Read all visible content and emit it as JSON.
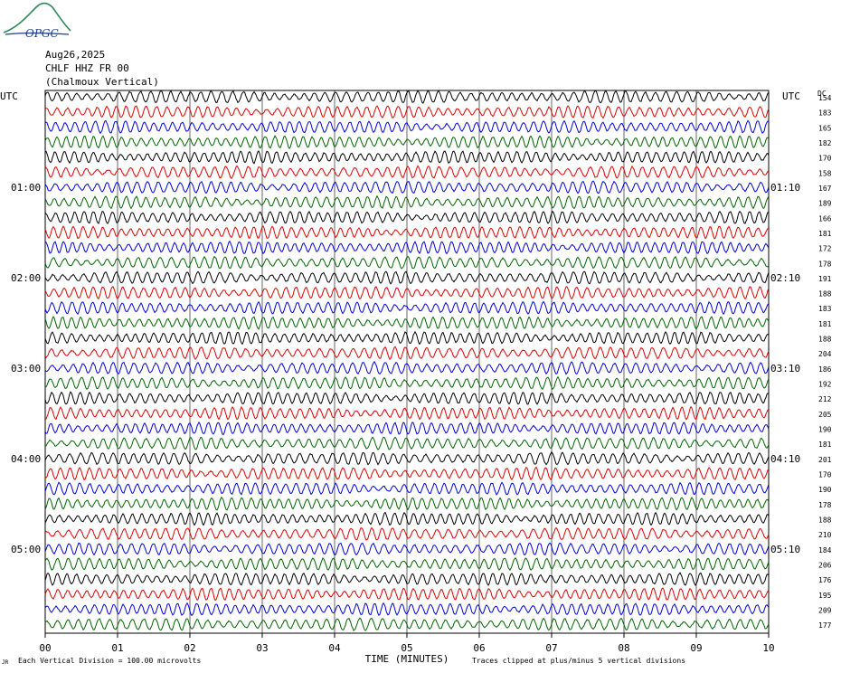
{
  "header": {
    "logo_text": "OPGC",
    "date": "Aug26,2025",
    "station": "CHLF HHZ FR 00",
    "location": "(Chalmoux Vertical)"
  },
  "chart_data": {
    "type": "line",
    "title": "",
    "xlabel": "TIME (MINUTES)",
    "ylabel": "",
    "xlim": [
      0,
      10
    ],
    "x_ticks": [
      "00",
      "01",
      "02",
      "03",
      "04",
      "05",
      "06",
      "07",
      "08",
      "09",
      "10"
    ],
    "left_axis_title": "UTC",
    "right_axis_title": "UTC",
    "right_column_title": "DC",
    "left_time_labels": [
      "01:00",
      "02:00",
      "03:00",
      "04:00",
      "05:00"
    ],
    "right_time_labels": [
      "01:10",
      "02:10",
      "03:10",
      "04:10",
      "05:10"
    ],
    "time_label_trace_index": [
      6,
      12,
      18,
      24,
      30
    ],
    "trace_colors": [
      "#000000",
      "#e00000",
      "#0000e0",
      "#006400"
    ],
    "trace_count": 36,
    "dc_offsets": [
      "154",
      "183",
      "165",
      "182",
      "170",
      "158",
      "167",
      "189",
      "166",
      "181",
      "172",
      "178",
      "191",
      "188",
      "183",
      "181",
      "188",
      "204",
      "186",
      "192",
      "212",
      "205",
      "190",
      "181",
      "201",
      "170",
      "190",
      "178",
      "188",
      "210",
      "184",
      "206",
      "176",
      "195",
      "209",
      "177"
    ],
    "grid": true,
    "footer_left_mark": "JR",
    "scale_note": "Each Vertical Division =  100.00 microvolts",
    "clip_note": "Traces clipped at plus/minus 5 vertical divisions"
  }
}
